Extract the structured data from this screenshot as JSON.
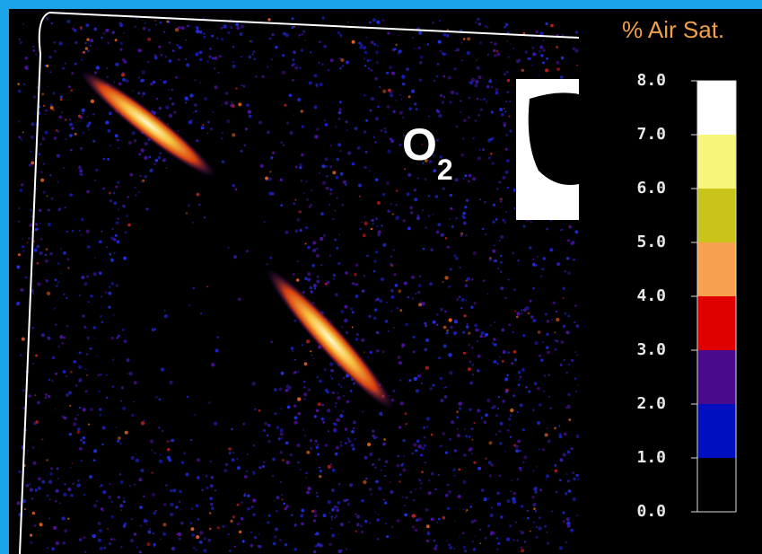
{
  "image": {
    "label": {
      "main": "O",
      "sub": "2"
    }
  },
  "colorbar": {
    "title": "% Air Sat.",
    "ticks": [
      "8.0",
      "7.0",
      "6.0",
      "5.0",
      "4.0",
      "3.0",
      "2.0",
      "1.0",
      "0.0"
    ],
    "bands": [
      {
        "color": "#ffffff"
      },
      {
        "color": "#f8f67a"
      },
      {
        "color": "#c9c41a"
      },
      {
        "color": "#f7a050"
      },
      {
        "color": "#e00000"
      },
      {
        "color": "#4a0a8c"
      },
      {
        "color": "#0010c0"
      },
      {
        "color": "#000000"
      }
    ]
  }
}
